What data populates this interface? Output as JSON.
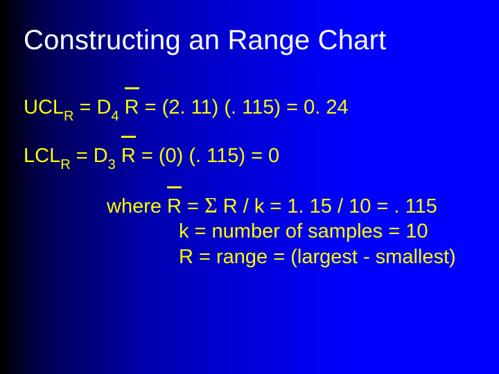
{
  "slide": {
    "background_gradient": [
      "#000000",
      "#0000ff"
    ],
    "title_color": "#ffffff",
    "text_color": "#ffff00",
    "title_fontsize": 40,
    "body_fontsize": 29,
    "sub_fontsize": 20
  },
  "title": "Constructing an Range Chart",
  "ucl": {
    "lhs_prefix": "UCL",
    "lhs_sub": "R",
    "eq1": " = D",
    "d_sub": "4",
    "sp": " ",
    "rbar": "R",
    "tail": " = (2. 11) (. 115) = 0. 24"
  },
  "lcl": {
    "lhs_prefix": "LCL",
    "lhs_sub": "R",
    "eq1": " = D",
    "d_sub": "3",
    "sp": " ",
    "rbar": "R",
    "tail": " =  (0) (. 115) = 0"
  },
  "where": {
    "label": "where   ",
    "rbar": "R",
    "eq": " = ",
    "sigma": "Σ",
    "line1_tail": " R / k = 1. 15 / 10 =  . 115",
    "line2": "k = number of samples = 10",
    "line3": "R = range = (largest - smallest)"
  }
}
